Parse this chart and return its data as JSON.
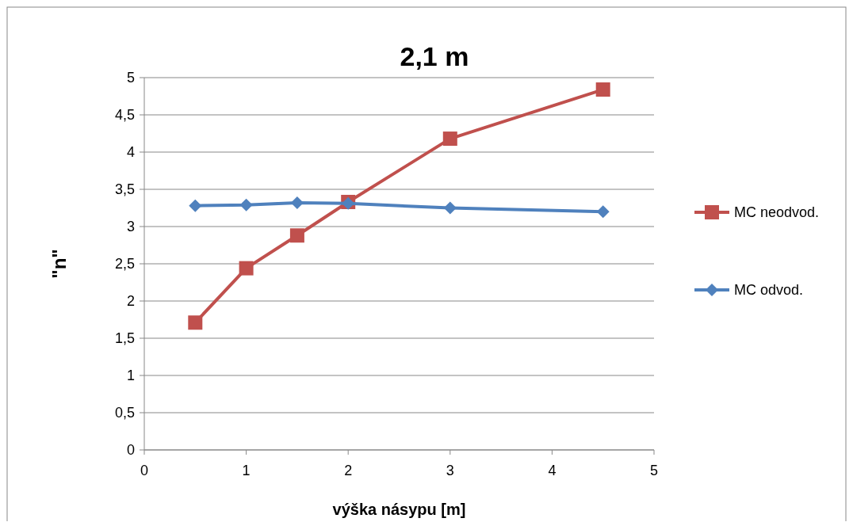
{
  "chart_data": {
    "type": "line",
    "title": "2,1 m",
    "xlabel": "výška násypu [m]",
    "ylabel": "\"n\"",
    "xlim": [
      0,
      5
    ],
    "xticks": [
      0,
      1,
      2,
      3,
      4,
      5
    ],
    "ylim": [
      0,
      5
    ],
    "yticks": [
      {
        "value": 0,
        "label": "0"
      },
      {
        "value": 0.5,
        "label": "0,5"
      },
      {
        "value": 1,
        "label": "1"
      },
      {
        "value": 1.5,
        "label": "1,5"
      },
      {
        "value": 2,
        "label": "2"
      },
      {
        "value": 2.5,
        "label": "2,5"
      },
      {
        "value": 3,
        "label": "3"
      },
      {
        "value": 3.5,
        "label": "3,5"
      },
      {
        "value": 4,
        "label": "4"
      },
      {
        "value": 4.5,
        "label": "4,5"
      },
      {
        "value": 5,
        "label": "5"
      }
    ],
    "grid": "y",
    "legend": "right",
    "x": [
      0.5,
      1,
      1.5,
      2,
      3,
      4.5
    ],
    "series": [
      {
        "name": "MC neodvod.",
        "color": "#c0504d",
        "marker": "square",
        "values": [
          1.71,
          2.44,
          2.88,
          3.33,
          4.18,
          4.84
        ]
      },
      {
        "name": "MC odvod.",
        "color": "#4f81bd",
        "marker": "diamond",
        "values": [
          3.28,
          3.29,
          3.32,
          3.31,
          3.25,
          3.2
        ]
      }
    ]
  }
}
